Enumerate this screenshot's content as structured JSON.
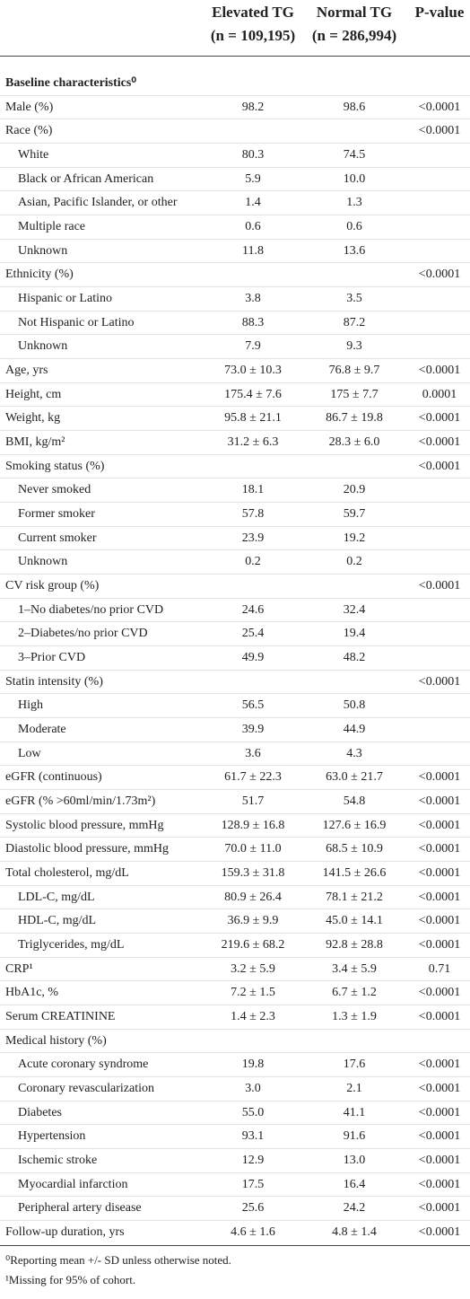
{
  "header": {
    "columns": [
      {
        "title": "Elevated TG",
        "n": "(n = 109,195)"
      },
      {
        "title": "Normal TG",
        "n": "(n = 286,994)"
      },
      {
        "title": "P-value"
      }
    ]
  },
  "section": "Baseline characteristics⁰",
  "rows": [
    {
      "label": "Male (%)",
      "elevated": "98.2",
      "normal": "98.6",
      "p": "<0.0001"
    },
    {
      "label": "Race (%)",
      "p": "<0.0001",
      "items": [
        {
          "label": "White",
          "elevated": "80.3",
          "normal": "74.5"
        },
        {
          "label": "Black or African American",
          "elevated": "5.9",
          "normal": "10.0"
        },
        {
          "label": "Asian, Pacific Islander, or other",
          "elevated": "1.4",
          "normal": "1.3"
        },
        {
          "label": "Multiple race",
          "elevated": "0.6",
          "normal": "0.6"
        },
        {
          "label": "Unknown",
          "elevated": "11.8",
          "normal": "13.6"
        }
      ]
    },
    {
      "label": "Ethnicity (%)",
      "p": "<0.0001",
      "items": [
        {
          "label": "Hispanic or Latino",
          "elevated": "3.8",
          "normal": "3.5"
        },
        {
          "label": "Not Hispanic or Latino",
          "elevated": "88.3",
          "normal": "87.2"
        },
        {
          "label": "Unknown",
          "elevated": "7.9",
          "normal": "9.3"
        }
      ]
    },
    {
      "label": "Age, yrs",
      "elevated": "73.0 ± 10.3",
      "normal": "76.8 ± 9.7",
      "p": "<0.0001"
    },
    {
      "label": "Height, cm",
      "elevated": "175.4 ± 7.6",
      "normal": "175 ± 7.7",
      "p": "0.0001"
    },
    {
      "label": "Weight, kg",
      "elevated": "95.8 ± 21.1",
      "normal": "86.7 ± 19.8",
      "p": "<0.0001"
    },
    {
      "label": "BMI, kg/m²",
      "elevated": "31.2 ± 6.3",
      "normal": "28.3 ± 6.0",
      "p": "<0.0001"
    },
    {
      "label": "Smoking status (%)",
      "p": "<0.0001",
      "items": [
        {
          "label": "Never smoked",
          "elevated": "18.1",
          "normal": "20.9"
        },
        {
          "label": "Former smoker",
          "elevated": "57.8",
          "normal": "59.7"
        },
        {
          "label": "Current smoker",
          "elevated": "23.9",
          "normal": "19.2"
        },
        {
          "label": "Unknown",
          "elevated": "0.2",
          "normal": "0.2"
        }
      ]
    },
    {
      "label": "CV risk group (%)",
      "p": "<0.0001",
      "items": [
        {
          "label": "1–No diabetes/no prior CVD",
          "elevated": "24.6",
          "normal": "32.4"
        },
        {
          "label": "2–Diabetes/no prior CVD",
          "elevated": "25.4",
          "normal": "19.4"
        },
        {
          "label": "3–Prior CVD",
          "elevated": "49.9",
          "normal": "48.2"
        }
      ]
    },
    {
      "label": "Statin intensity (%)",
      "p": "<0.0001",
      "items": [
        {
          "label": "High",
          "elevated": "56.5",
          "normal": "50.8"
        },
        {
          "label": "Moderate",
          "elevated": "39.9",
          "normal": "44.9"
        },
        {
          "label": "Low",
          "elevated": "3.6",
          "normal": "4.3"
        }
      ]
    },
    {
      "label": "eGFR (continuous)",
      "elevated": "61.7 ± 22.3",
      "normal": "63.0 ± 21.7",
      "p": "<0.0001"
    },
    {
      "label": "eGFR (% >60ml/min/1.73m²)",
      "elevated": "51.7",
      "normal": "54.8",
      "p": "<0.0001"
    },
    {
      "label": "Systolic blood pressure, mmHg",
      "elevated": "128.9 ± 16.8",
      "normal": "127.6 ± 16.9",
      "p": "<0.0001"
    },
    {
      "label": "Diastolic blood pressure, mmHg",
      "elevated": "70.0 ± 11.0",
      "normal": "68.5 ± 10.9",
      "p": "<0.0001"
    },
    {
      "label": "Total cholesterol, mg/dL",
      "elevated": "159.3 ± 31.8",
      "normal": "141.5 ± 26.6",
      "p": "<0.0001",
      "items": [
        {
          "label": "LDL-C, mg/dL",
          "elevated": "80.9 ± 26.4",
          "normal": "78.1 ± 21.2",
          "p": "<0.0001"
        },
        {
          "label": "HDL-C, mg/dL",
          "elevated": "36.9 ± 9.9",
          "normal": "45.0 ± 14.1",
          "p": "<0.0001"
        },
        {
          "label": "Triglycerides, mg/dL",
          "elevated": "219.6 ± 68.2",
          "normal": "92.8 ± 28.8",
          "p": "<0.0001"
        }
      ]
    },
    {
      "label": "CRP¹",
      "elevated": "3.2 ± 5.9",
      "normal": "3.4 ± 5.9",
      "p": "0.71"
    },
    {
      "label": "HbA1c, %",
      "elevated": "7.2 ± 1.5",
      "normal": "6.7 ± 1.2",
      "p": "<0.0001"
    },
    {
      "label": "Serum CREATININE",
      "elevated": "1.4 ± 2.3",
      "normal": "1.3 ± 1.9",
      "p": "<0.0001"
    },
    {
      "label": "Medical history (%)",
      "items": [
        {
          "label": "Acute coronary syndrome",
          "elevated": "19.8",
          "normal": "17.6",
          "p": "<0.0001"
        },
        {
          "label": "Coronary revascularization",
          "elevated": "3.0",
          "normal": "2.1",
          "p": "<0.0001"
        },
        {
          "label": "Diabetes",
          "elevated": "55.0",
          "normal": "41.1",
          "p": "<0.0001"
        },
        {
          "label": "Hypertension",
          "elevated": "93.1",
          "normal": "91.6",
          "p": "<0.0001"
        },
        {
          "label": "Ischemic stroke",
          "elevated": "12.9",
          "normal": "13.0",
          "p": "<0.0001"
        },
        {
          "label": "Myocardial infarction",
          "elevated": "17.5",
          "normal": "16.4",
          "p": "<0.0001"
        },
        {
          "label": "Peripheral artery disease",
          "elevated": "25.6",
          "normal": "24.2",
          "p": "<0.0001"
        }
      ]
    },
    {
      "label": "Follow-up duration, yrs",
      "elevated": "4.6 ± 1.6",
      "normal": "4.8 ± 1.4",
      "p": "<0.0001"
    }
  ],
  "footnotes": [
    "⁰Reporting mean +/- SD unless otherwise noted.",
    "¹Missing for 95% of cohort."
  ]
}
